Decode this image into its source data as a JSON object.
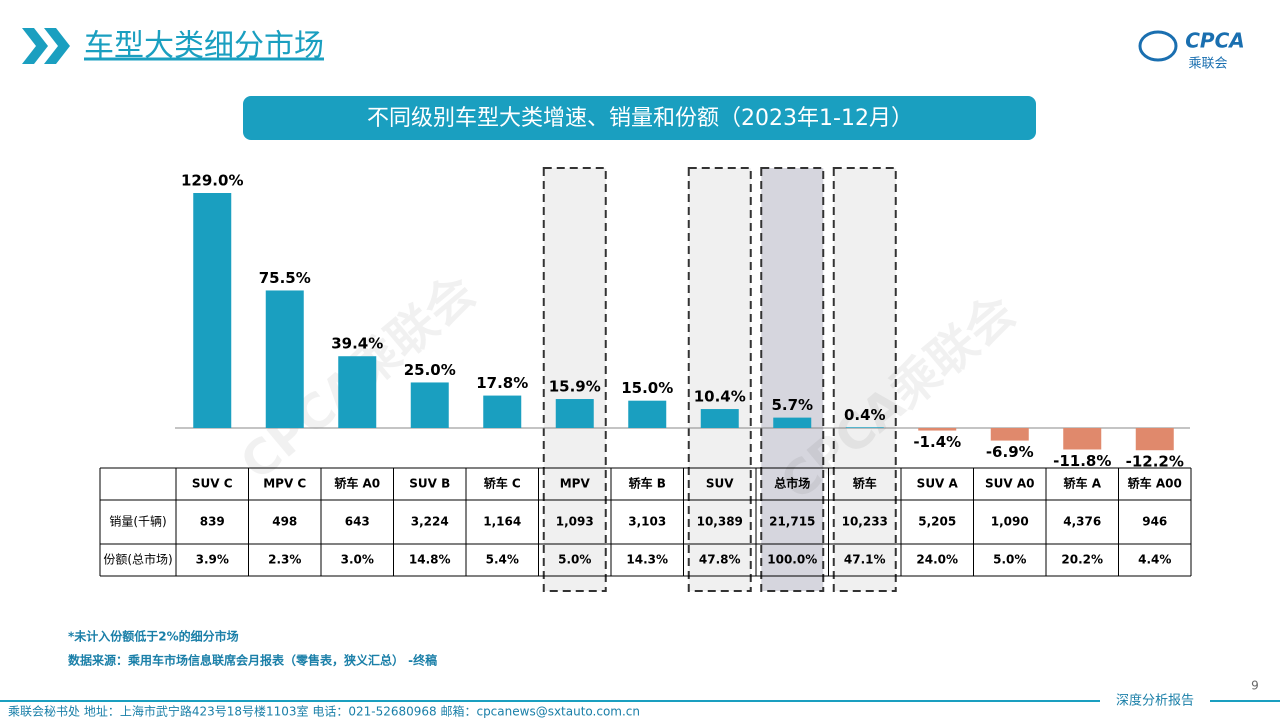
{
  "header": {
    "title": "车型大类细分市场",
    "logo_text": "CPCA",
    "logo_cn": "乘联会"
  },
  "watermark": "CPCA乘联会",
  "chart_data": {
    "type": "bar",
    "title": "不同级别车型大类增速、销量和份额（2023年1-12月）",
    "categories": [
      "SUV C",
      "MPV C",
      "轿车 A0",
      "SUV B",
      "轿车 C",
      "MPV",
      "轿车 B",
      "SUV",
      "总市场",
      "轿车",
      "SUV A",
      "SUV A0",
      "轿车 A",
      "轿车 A00"
    ],
    "values": [
      129.0,
      75.5,
      39.4,
      25.0,
      17.8,
      15.9,
      15.0,
      10.4,
      5.7,
      0.4,
      -1.4,
      -6.9,
      -11.8,
      -12.2
    ],
    "value_labels": [
      "129.0%",
      "75.5%",
      "39.4%",
      "25.0%",
      "17.8%",
      "15.9%",
      "15.0%",
      "10.4%",
      "5.7%",
      "0.4%",
      "-1.4%",
      "-6.9%",
      "-11.8%",
      "-12.2%"
    ],
    "positive_color": "#1a9fc0",
    "negative_color": "#e0896c"
  },
  "table": {
    "row_labels": [
      "销量(千辆)",
      "份额(总市场)"
    ],
    "rows": [
      [
        "839",
        "498",
        "643",
        "3,224",
        "1,164",
        "1,093",
        "3,103",
        "10,389",
        "21,715",
        "10,233",
        "5,205",
        "1,090",
        "4,376",
        "946"
      ],
      [
        "3.9%",
        "2.3%",
        "3.0%",
        "14.8%",
        "5.4%",
        "5.0%",
        "14.3%",
        "47.8%",
        "100.0%",
        "47.1%",
        "24.0%",
        "5.0%",
        "20.2%",
        "4.4%"
      ]
    ]
  },
  "notes": [
    "*未计入份额低于2%的细分市场",
    "数据来源：乘用车市场信息联席会月报表（零售表，狭义汇总） -终稿"
  ],
  "footer": {
    "address": "乘联会秘书处   地址：上海市武宁路423号18号楼1103室   电话：021-52680968   邮箱：cpcanews@sxtauto.com.cn",
    "report": "深度分析报告",
    "page": "9"
  }
}
